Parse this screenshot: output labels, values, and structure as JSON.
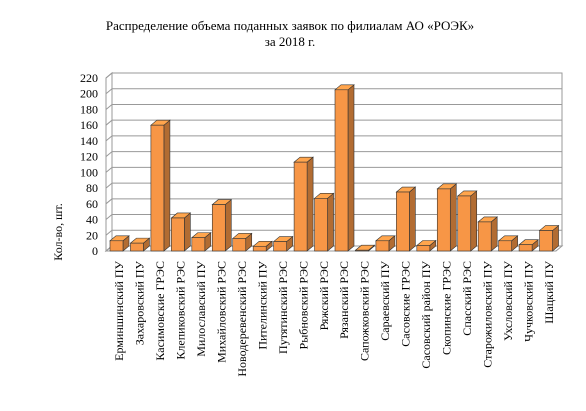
{
  "chart_data": {
    "type": "bar3d",
    "title": "Распределение объема поданных заявок по филиалам АО «РОЭК»",
    "subtitle": "за 2018 г.",
    "y_label": "Кол-во, шт.",
    "categories": [
      "Ерминшинский ПУ",
      "Захаровский ПУ",
      "Касимовские ГРЭС",
      "Клепиковский РЭС",
      "Милославский ПУ",
      "Михайловский РЭС",
      "Новодеревенский РЭС",
      "Пителинский ПУ",
      "Путятинский РЭС",
      "Рыбновский РЭС",
      "Ряжский РЭС",
      "Рязанский РЭС",
      "Сапожковский РЭС",
      "Сараевский ПУ",
      "Сасовские ГРЭС",
      "Сасовский район ПУ",
      "Скопинские ГРЭС",
      "Спасский РЭС",
      "Старожиловский ПУ",
      "Ухсловский ПУ",
      "Чучковский ПУ",
      "Шацкий ПУ"
    ],
    "values": [
      13,
      10,
      160,
      42,
      17,
      59,
      16,
      6,
      12,
      113,
      67,
      205,
      1,
      13,
      75,
      7,
      79,
      70,
      37,
      13,
      8,
      26
    ],
    "color": "#f79646",
    "ylim": [
      0,
      220
    ],
    "yticks": [
      0,
      20,
      40,
      60,
      80,
      100,
      120,
      140,
      160,
      180,
      200,
      220
    ],
    "grid": true
  }
}
